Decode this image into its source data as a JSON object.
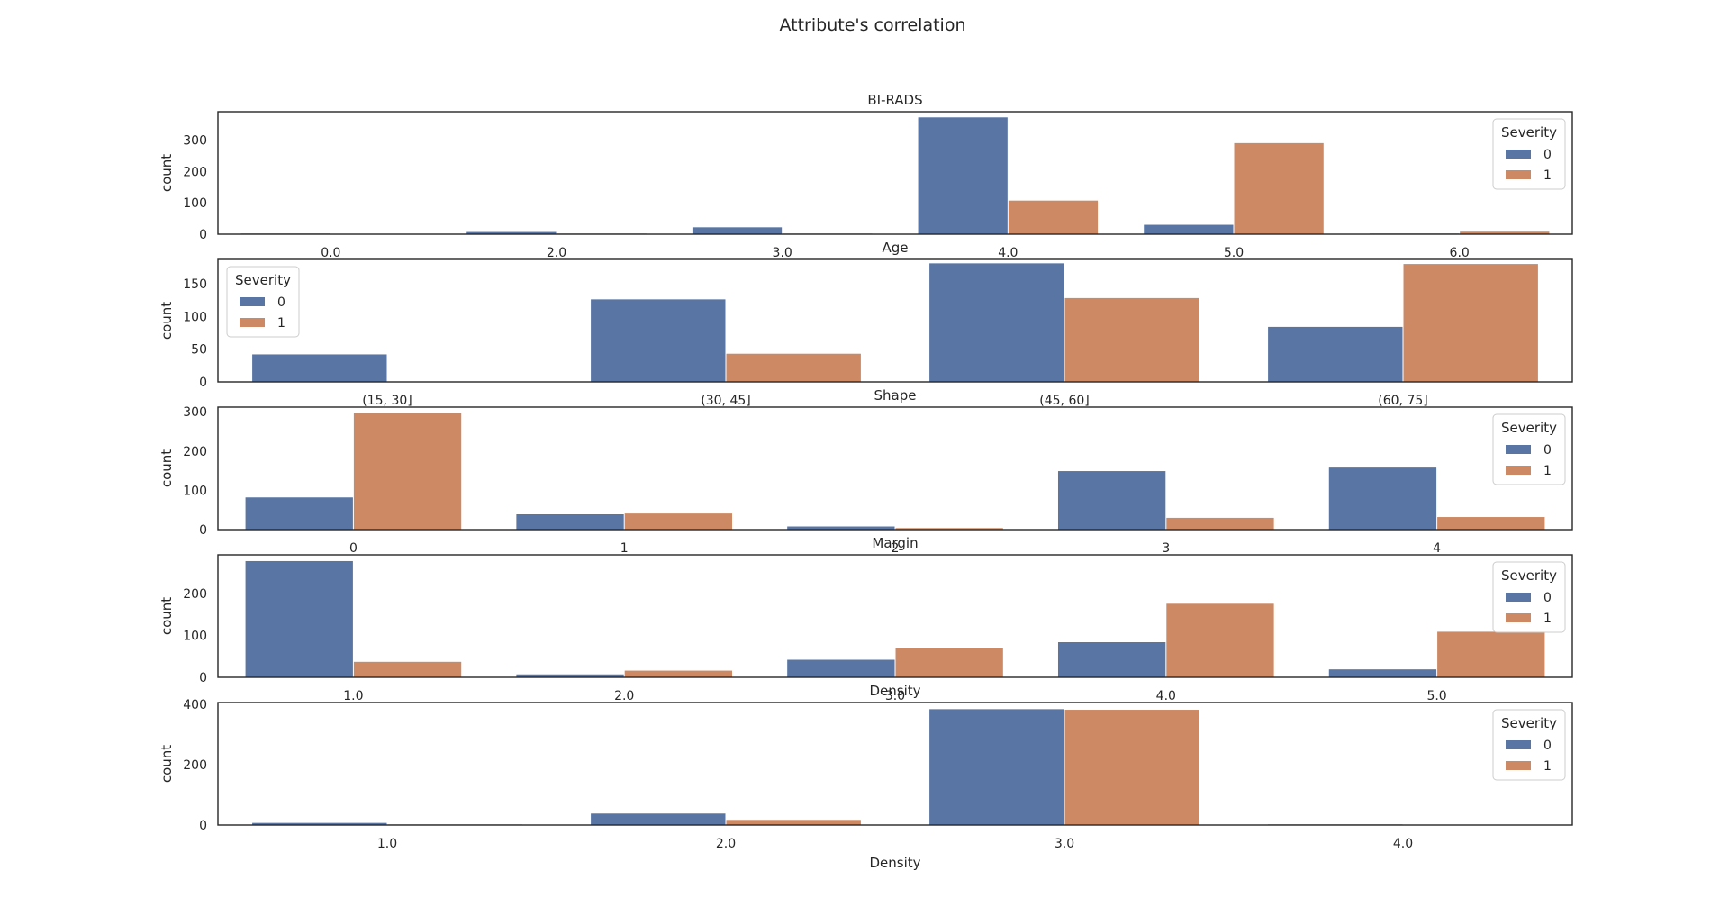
{
  "title": "Attribute's correlation",
  "colors": {
    "severity_0": "#5875a4",
    "severity_1": "#cc8963",
    "axis": "#262626",
    "legend_border": "#cccccc"
  },
  "chart_data": [
    {
      "type": "bar",
      "title": "BI-RADS",
      "ylabel": "count",
      "xlabel": "",
      "categories": [
        "0.0",
        "2.0",
        "3.0",
        "4.0",
        "5.0",
        "6.0"
      ],
      "ylim": [
        0,
        390
      ],
      "yticks": [
        0,
        100,
        200,
        300
      ],
      "legend": {
        "title": "Severity",
        "placement": "upper right"
      },
      "series": [
        {
          "name": "0",
          "values": [
            2,
            7,
            22,
            372,
            30,
            2
          ]
        },
        {
          "name": "1",
          "values": [
            1,
            2,
            2,
            107,
            290,
            8
          ]
        }
      ]
    },
    {
      "type": "bar",
      "title": "Age",
      "ylabel": "count",
      "xlabel": "",
      "categories": [
        "(15, 30]",
        "(30, 45]",
        "(45, 60]",
        "(60, 75]"
      ],
      "ylim": [
        0,
        187
      ],
      "yticks": [
        0,
        50,
        100,
        150
      ],
      "legend": {
        "title": "Severity",
        "placement": "upper left"
      },
      "series": [
        {
          "name": "0",
          "values": [
            42,
            126,
            181,
            84
          ]
        },
        {
          "name": "1",
          "values": [
            0,
            43,
            128,
            180
          ]
        }
      ]
    },
    {
      "type": "bar",
      "title": "Shape",
      "ylabel": "count",
      "xlabel": "",
      "categories": [
        "0",
        "1",
        "2",
        "3",
        "4"
      ],
      "ylim": [
        0,
        312
      ],
      "yticks": [
        0,
        100,
        200,
        300
      ],
      "legend": {
        "title": "Severity",
        "placement": "upper right"
      },
      "series": [
        {
          "name": "0",
          "values": [
            82,
            39,
            8,
            149,
            158
          ]
        },
        {
          "name": "1",
          "values": [
            297,
            41,
            4,
            30,
            32
          ]
        }
      ]
    },
    {
      "type": "bar",
      "title": "Margin",
      "ylabel": "count",
      "xlabel": "",
      "categories": [
        "1.0",
        "2.0",
        "3.0",
        "4.0",
        "5.0"
      ],
      "ylim": [
        0,
        293
      ],
      "yticks": [
        0,
        100,
        200
      ],
      "legend": {
        "title": "Severity",
        "placement": "upper right"
      },
      "series": [
        {
          "name": "0",
          "values": [
            278,
            7,
            42,
            84,
            19
          ]
        },
        {
          "name": "1",
          "values": [
            37,
            16,
            69,
            176,
            109
          ]
        }
      ]
    },
    {
      "type": "bar",
      "title": "Density",
      "ylabel": "count",
      "xlabel": "Density",
      "categories": [
        "1.0",
        "2.0",
        "3.0",
        "4.0"
      ],
      "ylim": [
        0,
        406
      ],
      "yticks": [
        0,
        200,
        400
      ],
      "legend": {
        "title": "Severity",
        "placement": "upper right"
      },
      "series": [
        {
          "name": "0",
          "values": [
            7,
            38,
            384,
            2
          ]
        },
        {
          "name": "1",
          "values": [
            2,
            17,
            382,
            1
          ]
        }
      ]
    }
  ]
}
